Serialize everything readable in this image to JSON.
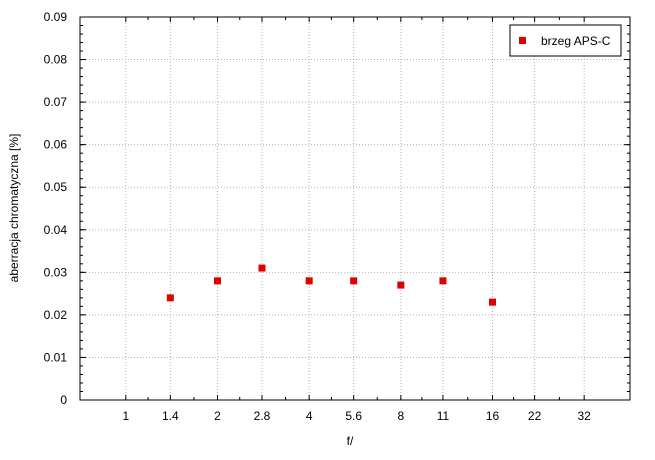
{
  "chart_data": {
    "type": "scatter",
    "title": "",
    "xlabel": "f/",
    "ylabel": "aberracja chromatyczna [%]",
    "x_scale": "log2",
    "xlim": [
      0.7071,
      45.255
    ],
    "ylim": [
      0,
      0.09
    ],
    "grid": true,
    "legend_position": "top-right",
    "x_ticks": [
      1,
      1.4,
      2,
      2.8,
      4,
      5.6,
      8,
      11,
      16,
      22,
      32
    ],
    "x_tick_labels": [
      "1",
      "1.4",
      "2",
      "2.8",
      "4",
      "5.6",
      "8",
      "11",
      "16",
      "22",
      "32"
    ],
    "y_ticks": [
      0,
      0.01,
      0.02,
      0.03,
      0.04,
      0.05,
      0.06,
      0.07,
      0.08,
      0.09
    ],
    "y_tick_labels": [
      "0",
      "0.01",
      "0.02",
      "0.03",
      "0.04",
      "0.05",
      "0.06",
      "0.07",
      "0.08",
      "0.09"
    ],
    "series": [
      {
        "name": "brzeg APS-C",
        "color": "#e00000",
        "marker": "square",
        "points": [
          {
            "x": 1.4,
            "y": 0.024
          },
          {
            "x": 2,
            "y": 0.028
          },
          {
            "x": 2.8,
            "y": 0.031
          },
          {
            "x": 4,
            "y": 0.028
          },
          {
            "x": 5.6,
            "y": 0.028
          },
          {
            "x": 8,
            "y": 0.027
          },
          {
            "x": 11,
            "y": 0.028
          },
          {
            "x": 16,
            "y": 0.023
          }
        ]
      }
    ]
  }
}
